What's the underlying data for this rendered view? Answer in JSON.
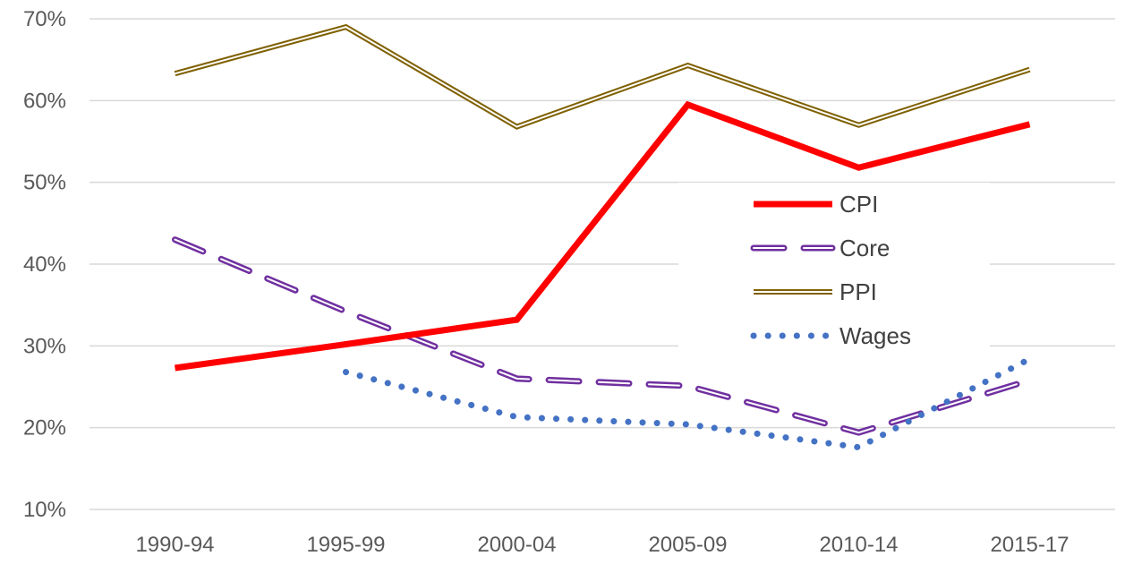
{
  "chart_data": {
    "type": "line",
    "categories": [
      "1990-94",
      "1995-99",
      "2000-04",
      "2005-09",
      "2010-14",
      "2015-17"
    ],
    "ylim": [
      10,
      70
    ],
    "yticks": [
      10,
      20,
      30,
      40,
      50,
      60,
      70
    ],
    "ytick_labels": [
      "10%",
      "20%",
      "30%",
      "40%",
      "50%",
      "60%",
      "70%"
    ],
    "grid": true,
    "legend_position": "right-center",
    "series": [
      {
        "name": "CPI",
        "color": "#ff0000",
        "style": "solid",
        "values": [
          27.3,
          30.2,
          33.2,
          59.5,
          51.8,
          57.1
        ]
      },
      {
        "name": "Core",
        "color": "#7030a0",
        "style": "dashed",
        "values": [
          43.0,
          34.2,
          26.0,
          25.1,
          19.4,
          25.8
        ]
      },
      {
        "name": "PPI",
        "color": "#7f6000",
        "style": "double",
        "values": [
          63.3,
          69.0,
          56.8,
          64.3,
          57.0,
          63.8
        ]
      },
      {
        "name": "Wages",
        "color": "#4472c4",
        "style": "dotted",
        "values": [
          null,
          26.8,
          21.3,
          20.4,
          17.6,
          28.4
        ]
      }
    ]
  }
}
